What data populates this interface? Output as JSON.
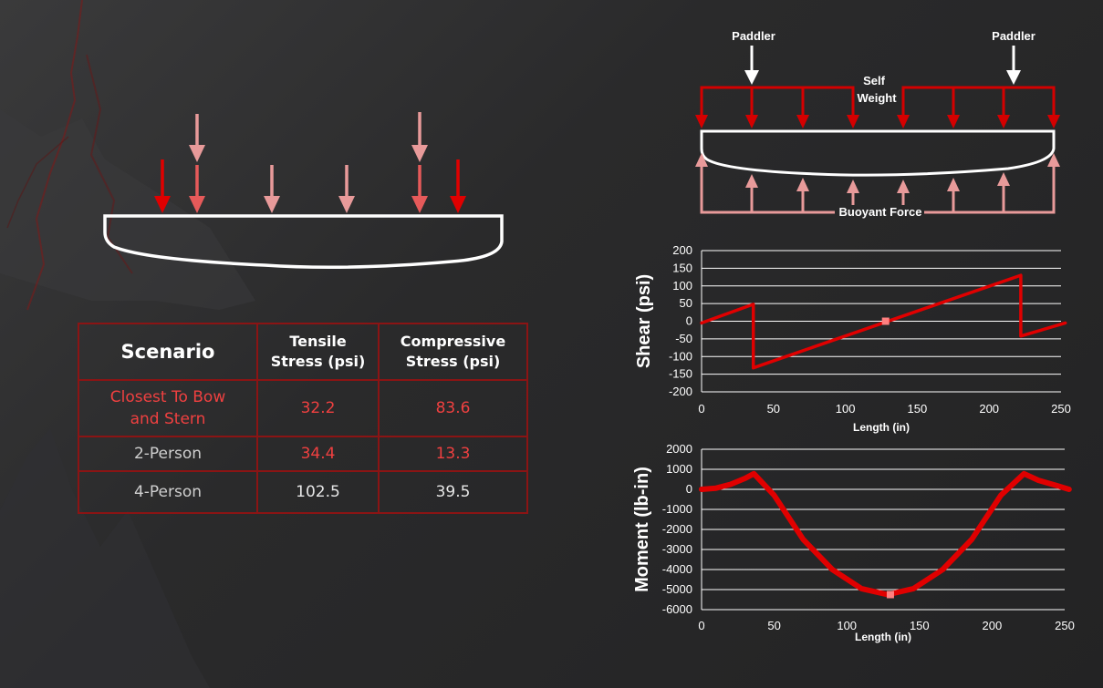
{
  "colors": {
    "dark_red": "#e00000",
    "mid_red": "#e65a5a",
    "light_red": "#e89a9a",
    "series": "#e00000",
    "table_border": "#8b1414",
    "highlight_text": "#ef4040"
  },
  "table": {
    "headers": {
      "scenario": "Scenario",
      "tensile_line1": "Tensile",
      "tensile_line2": "Stress (psi)",
      "compressive_line1": "Compressive",
      "compressive_line2": "Stress (psi)"
    },
    "rows": [
      {
        "scenario_line1": "Closest To Bow",
        "scenario_line2": "and Stern",
        "tensile": "32.2",
        "compressive": "83.6"
      },
      {
        "scenario": "2-Person",
        "tensile": "34.4",
        "compressive": "13.3"
      },
      {
        "scenario": "4-Person",
        "tensile": "102.5",
        "compressive": "39.5"
      }
    ]
  },
  "diagram": {
    "paddler_left": "Paddler",
    "paddler_right": "Paddler",
    "self_weight_line1": "Self",
    "self_weight_line2": "Weight",
    "buoyant_force": "Buoyant Force"
  },
  "chart_data": [
    {
      "type": "line",
      "ylabel": "Shear (psi)",
      "xlabel": "Length (in)",
      "xlim": [
        0,
        250
      ],
      "ylim": [
        -200,
        200
      ],
      "xticks": [
        0,
        50,
        100,
        150,
        200,
        250
      ],
      "yticks": [
        200,
        150,
        100,
        50,
        0,
        -50,
        -100,
        -150,
        -200
      ],
      "grid": true,
      "series": [
        {
          "points": [
            [
              0,
              -5
            ],
            [
              36,
              48
            ],
            [
              36,
              -132
            ],
            [
              222,
              130
            ],
            [
              222,
              -42
            ],
            [
              253,
              -5
            ]
          ]
        }
      ],
      "marker": {
        "x": 128,
        "y": 0
      }
    },
    {
      "type": "line",
      "ylabel": "Moment (lb-in)",
      "xlabel": "Length (in)",
      "xlim": [
        0,
        250
      ],
      "ylim": [
        -6000,
        2000
      ],
      "xticks": [
        0,
        50,
        100,
        150,
        200,
        250
      ],
      "yticks": [
        2000,
        1000,
        0,
        -1000,
        -2000,
        -3000,
        -4000,
        -5000,
        -6000
      ],
      "grid": true,
      "series": [
        {
          "points": [
            [
              0,
              0
            ],
            [
              10,
              60
            ],
            [
              20,
              250
            ],
            [
              30,
              550
            ],
            [
              36,
              780
            ],
            [
              50,
              -300
            ],
            [
              70,
              -2500
            ],
            [
              90,
              -4000
            ],
            [
              110,
              -4950
            ],
            [
              128,
              -5250
            ],
            [
              146,
              -4950
            ],
            [
              166,
              -4000
            ],
            [
              186,
              -2500
            ],
            [
              206,
              -300
            ],
            [
              222,
              780
            ],
            [
              232,
              450
            ],
            [
              244,
              200
            ],
            [
              253,
              0
            ]
          ]
        }
      ],
      "marker": {
        "x": 130,
        "y": -5250
      }
    }
  ]
}
